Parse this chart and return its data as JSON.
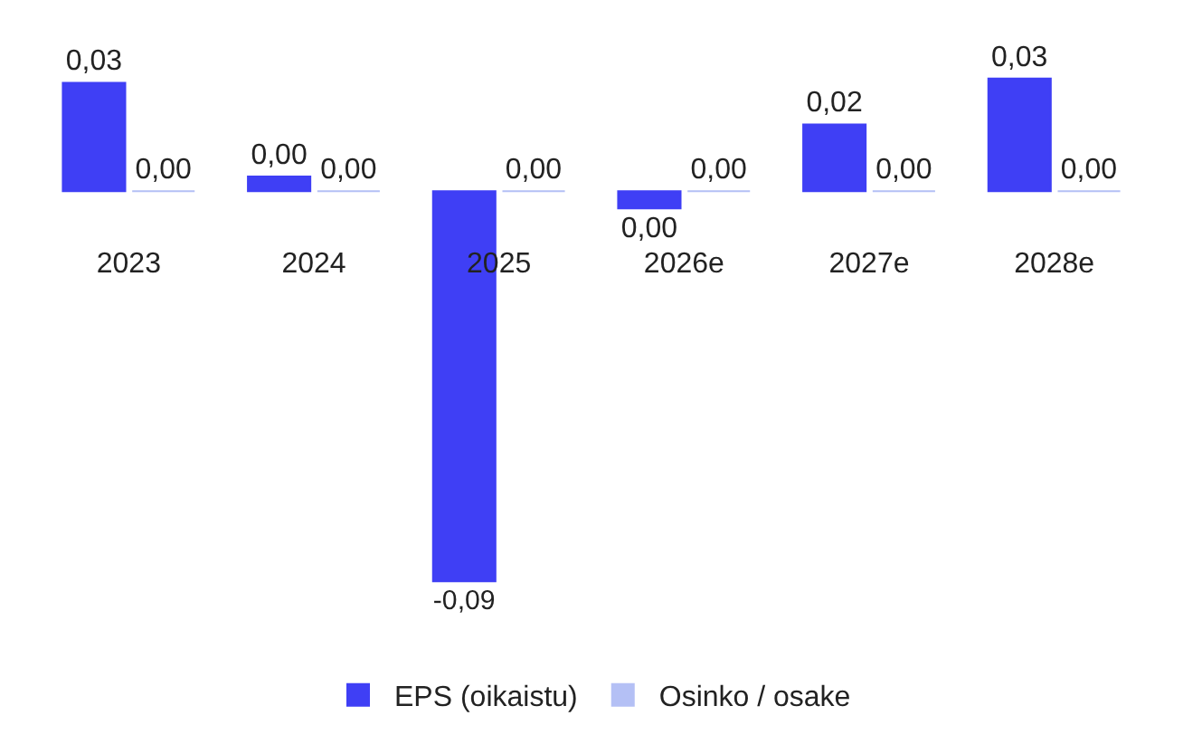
{
  "chart_data": {
    "type": "bar",
    "categories": [
      "2023",
      "2024",
      "2025",
      "2026e",
      "2027e",
      "2028e"
    ],
    "series": [
      {
        "name": "EPS (oikaistu)",
        "color": "#3f3ff5",
        "values": [
          0.025,
          0.0034,
          -0.09,
          -0.004,
          0.0154,
          0.026
        ],
        "value_labels": [
          "0,03",
          "0,00",
          "-0,09",
          "0,00",
          "0,02",
          "0,03"
        ]
      },
      {
        "name": "Osinko / osake",
        "color": "#b4c0f5",
        "values": [
          0,
          0,
          0,
          0,
          0,
          0
        ],
        "value_labels": [
          "0,00",
          "0,00",
          "0,00",
          "0,00",
          "0,00",
          "0,00"
        ]
      }
    ],
    "legend": "bottom",
    "grid": false
  }
}
